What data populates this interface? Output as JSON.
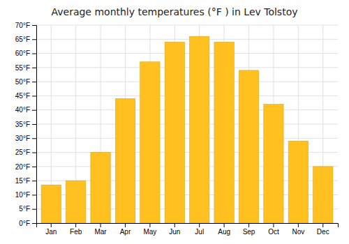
{
  "chart_data": {
    "type": "bar",
    "title": "Average monthly temperatures (°F ) in Lev Tolstoy",
    "categories": [
      "Jan",
      "Feb",
      "Mar",
      "Apr",
      "May",
      "Jun",
      "Jul",
      "Aug",
      "Sep",
      "Oct",
      "Nov",
      "Dec"
    ],
    "values": [
      13.5,
      15.0,
      25.0,
      44.0,
      57.0,
      64.0,
      66.0,
      64.0,
      54.0,
      42.0,
      29.0,
      20.0
    ],
    "color": "#FFC020",
    "ylim": [
      0,
      70
    ],
    "yticks": [
      {
        "value": 0,
        "label": "0°F"
      },
      {
        "value": 5,
        "label": "5°F"
      },
      {
        "value": 10,
        "label": "10°F"
      },
      {
        "value": 15,
        "label": "15°F"
      },
      {
        "value": 20,
        "label": "20°F"
      },
      {
        "value": 25,
        "label": "25°F"
      },
      {
        "value": 30,
        "label": "30°F"
      },
      {
        "value": 35,
        "label": "35°F"
      },
      {
        "value": 40,
        "label": "40°F"
      },
      {
        "value": 45,
        "label": "45°F"
      },
      {
        "value": 50,
        "label": "50°F"
      },
      {
        "value": 55,
        "label": "55°F"
      },
      {
        "value": 60,
        "label": "60°F"
      },
      {
        "value": 65,
        "label": "65°F"
      },
      {
        "value": 70,
        "label": "70°F"
      }
    ],
    "grid": true
  }
}
